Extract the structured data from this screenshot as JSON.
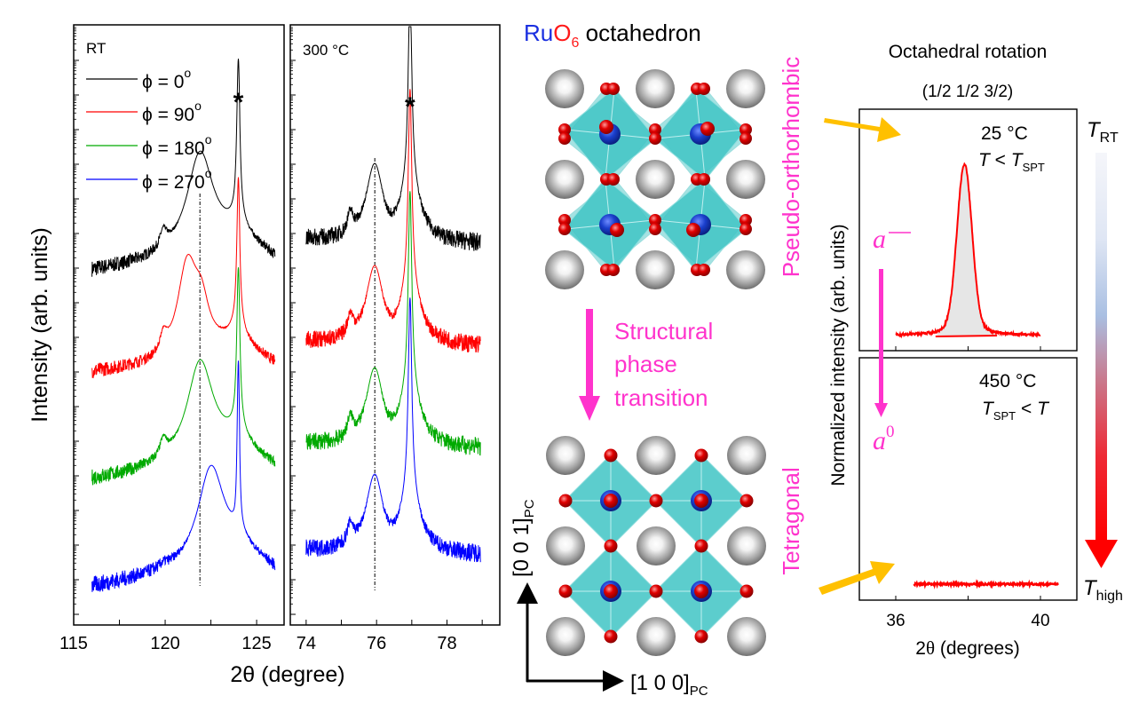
{
  "colors": {
    "phi0": "#000000",
    "phi90": "#ff0000",
    "phi180": "#00aa00",
    "phi270": "#0000ff",
    "accent_pink": "#ff33cc",
    "arrow_gold": "#ffc000",
    "ru": "#1a3fcc",
    "o": "#e00000",
    "a_site": "#9a9a9a",
    "octahedron": "#40c4c4",
    "rt_peak": "#ff0000",
    "rt_fill": "#e6e6e6"
  },
  "left_figure": {
    "ylabel": "Intensity (arb. units)",
    "xlabel": "2θ (degree)",
    "legend": [
      {
        "label": "ϕ = 0",
        "sup": "o",
        "color_key": "phi0"
      },
      {
        "label": "ϕ = 90",
        "sup": "o",
        "color_key": "phi90"
      },
      {
        "label": "ϕ = 180",
        "sup": "o",
        "color_key": "phi180"
      },
      {
        "label": "ϕ = 270",
        "sup": "o",
        "color_key": "phi270"
      }
    ],
    "peak_marker": "*"
  },
  "chart_data": [
    {
      "type": "line",
      "title": "RT",
      "xlabel": "2θ (degree)",
      "ylabel": "Intensity (arb. units)",
      "xlim": [
        115,
        126.5
      ],
      "xticks": [
        115,
        120,
        125
      ],
      "yscale": "log (offset, arbitrary)",
      "reference_line_x": 121.9,
      "substrate_peak_x": 124.0,
      "series": [
        {
          "name": "ϕ = 0°",
          "x_range": [
            116.0,
            126.0
          ],
          "film_peak": 121.9,
          "substrate_peak": 124.0,
          "shoulder": 119.9
        },
        {
          "name": "ϕ = 90°",
          "x_range": [
            116.0,
            126.0
          ],
          "film_peak": 121.2,
          "substrate_peak": 124.0,
          "shoulder": 119.9
        },
        {
          "name": "ϕ = 180°",
          "x_range": [
            116.0,
            126.0
          ],
          "film_peak": 121.9,
          "substrate_peak": 124.0,
          "shoulder": 119.9
        },
        {
          "name": "ϕ = 270°",
          "x_range": [
            116.0,
            126.0
          ],
          "film_peak": 122.5,
          "substrate_peak": 124.0,
          "shoulder": 119.9
        }
      ]
    },
    {
      "type": "line",
      "title": "300 °C",
      "xlabel": "2θ (degree)",
      "xlim": [
        73.55,
        79.5
      ],
      "xticks": [
        74,
        76,
        78
      ],
      "yscale": "log (offset, arbitrary)",
      "reference_line_x": 75.95,
      "substrate_peak_x": 76.95,
      "series": [
        {
          "name": "ϕ = 0°",
          "x_range": [
            74.0,
            78.95
          ],
          "film_peak": 75.95,
          "substrate_peak": 76.95,
          "shoulder": 75.25
        },
        {
          "name": "ϕ = 90°",
          "x_range": [
            74.0,
            78.95
          ],
          "film_peak": 75.95,
          "substrate_peak": 76.95,
          "shoulder": 75.25
        },
        {
          "name": "ϕ = 180°",
          "x_range": [
            74.0,
            78.95
          ],
          "film_peak": 75.95,
          "substrate_peak": 76.95,
          "shoulder": 75.25
        },
        {
          "name": "ϕ = 270°",
          "x_range": [
            74.0,
            78.95
          ],
          "film_peak": 75.95,
          "substrate_peak": 76.95,
          "shoulder": 75.25
        }
      ]
    },
    {
      "type": "area",
      "title": "25 °C",
      "subtitle": "T < T_SPT",
      "xlabel": "2θ (degrees)",
      "ylabel": "Normalized intensity (arb. units)",
      "xlim": [
        35.0,
        42.0
      ],
      "xticks": [
        36,
        38,
        40
      ],
      "xtick_labels": [
        "36",
        "",
        "40"
      ],
      "series": [
        {
          "name": "(1/2 1/2 3/2) at 25 °C",
          "x_range": [
            36.0,
            40.0
          ],
          "peak_center": 37.9,
          "peak_fwhm": 0.45,
          "peak_height": 1.0,
          "baseline": 0.0
        }
      ]
    },
    {
      "type": "line",
      "title": "450 °C",
      "subtitle": "T_SPT < T",
      "xlabel": "2θ (degrees)",
      "xlim": [
        35.0,
        42.0
      ],
      "xticks": [
        36,
        38,
        40
      ],
      "xtick_labels": [
        "36",
        "",
        "40"
      ],
      "series": [
        {
          "name": "(1/2 1/2 3/2) at 450 °C",
          "x_range": [
            36.5,
            40.5
          ],
          "peak_height": 0.0,
          "baseline": 0.0
        }
      ]
    }
  ],
  "middle": {
    "title_ru": "Ru",
    "title_o": "O",
    "title_sub6": "6",
    "title_rest": " octahedron",
    "label_top_phase": "Pseudo-orthorhombic",
    "transition_lines": [
      "Structural",
      "phase",
      "transition"
    ],
    "label_bottom_phase": "Tetragonal",
    "axis_vertical": "[0 0 1]",
    "axis_vertical_sub": "PC",
    "axis_horizontal": "[1 0 0]",
    "axis_horizontal_sub": "PC"
  },
  "right_figure": {
    "title": "Octahedral rotation",
    "reflection": "(1/2 1/2 3/2)",
    "ylabel": "Normalized intensity (arb. units)",
    "xlabel_prefix": "2",
    "xlabel_theta": "θ",
    "xlabel_suffix": " (degrees)",
    "top_temp": "25 °C",
    "top_cond_T": "T",
    "top_cond_mid": " < ",
    "top_cond_T2": "T",
    "top_cond_sub": "SPT",
    "bottom_temp": "450 °C",
    "bottom_cond_T": "T",
    "bottom_cond_sub": "SPT",
    "bottom_cond_mid": " < ",
    "bottom_cond_T2": "T",
    "glazer_top": "a",
    "glazer_top_sup": "—",
    "glazer_bottom": "a",
    "glazer_bottom_sup": "0",
    "temp_top_T": "T",
    "temp_top_sub": "RT",
    "temp_bottom_T": "T",
    "temp_bottom_sub": "high",
    "x_tick_36": "36",
    "x_tick_40": "40"
  }
}
